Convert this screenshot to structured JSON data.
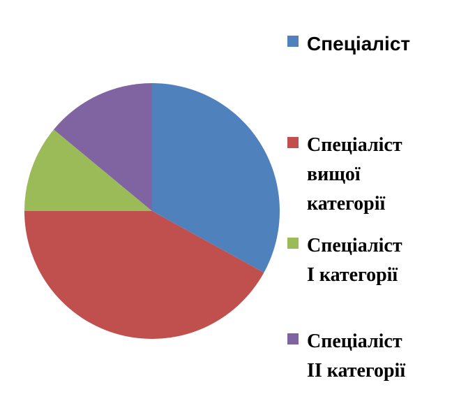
{
  "chart_data": {
    "type": "pie",
    "title": "",
    "categories": [
      "Спеціаліст",
      "Спеціаліст вищої категорії",
      "Спеціаліст І категорії",
      "Спеціаліст ІІ категорії"
    ],
    "values": [
      33,
      42,
      11,
      14
    ],
    "colors": [
      "#4F81BD",
      "#C0504D",
      "#9BBB59",
      "#8064A2"
    ],
    "start_angle": "12 o'clock",
    "direction": "clockwise",
    "legend_position": "right"
  },
  "legend": {
    "items": [
      {
        "label": "Спеціаліст",
        "color": "#4F81BD"
      },
      {
        "label": "Спеціаліст\nвищої\nкатегорії",
        "color": "#C0504D"
      },
      {
        "label": "Спеціаліст\nІ категорії",
        "color": "#9BBB59"
      },
      {
        "label": "Спеціаліст\nІІ категорії",
        "color": "#8064A2"
      }
    ]
  }
}
